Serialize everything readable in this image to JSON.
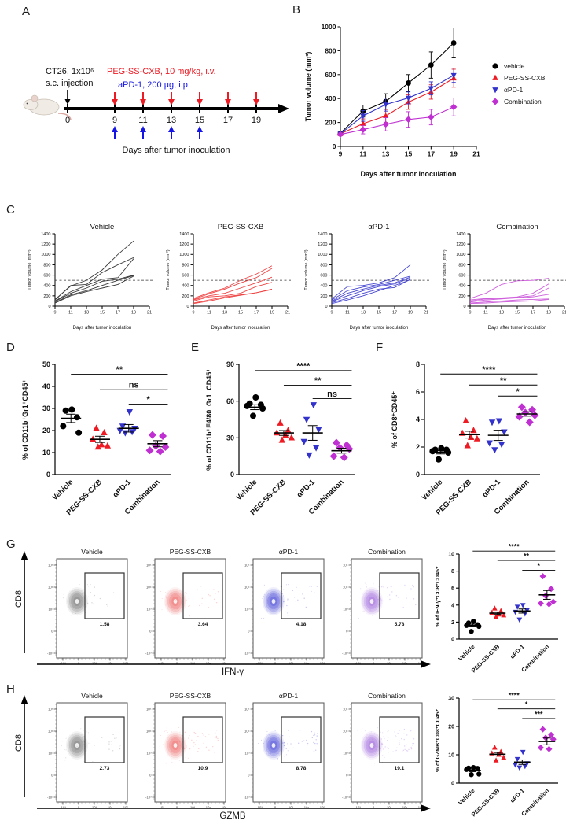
{
  "panels": {
    "a": "A",
    "b": "B",
    "c": "C",
    "d": "D",
    "e": "E",
    "f": "F",
    "g": "G",
    "h": "H"
  },
  "panel_a": {
    "injection_line1": "CT26, 1x10⁶",
    "injection_line2": "s.c. injection",
    "red_text": "PEG-SS-CXB, 10 mg/kg, i.v.",
    "blue_text": "aPD-1, 200 µg, i.p.",
    "timeline_days": [
      0,
      9,
      11,
      13,
      15,
      17,
      19
    ],
    "red_arrow_days": [
      9,
      11,
      13,
      15,
      17,
      19
    ],
    "blue_arrow_days": [
      9,
      11,
      13,
      15
    ],
    "xlabel": "Days after tumor inoculation",
    "red": "#ED1C24",
    "blue": "#1414E6"
  },
  "chart_data": [
    {
      "id": "B",
      "kind": "line",
      "type": "line",
      "xlabel": "Days after tumor inoculation",
      "ylabel": "Tumor volume (mm³)",
      "xlim": [
        9,
        21
      ],
      "ylim": [
        0,
        1000
      ],
      "xticks": [
        9,
        11,
        13,
        15,
        17,
        19,
        21
      ],
      "yticks": [
        0,
        200,
        400,
        600,
        800,
        1000
      ],
      "x": [
        9,
        11,
        13,
        15,
        17,
        19
      ],
      "legend_position": "right",
      "series": [
        {
          "name": "vehicle",
          "color": "#000000",
          "marker": "circle",
          "values": [
            110,
            295,
            375,
            530,
            680,
            865
          ],
          "err": [
            15,
            50,
            65,
            70,
            110,
            125
          ]
        },
        {
          "name": "PEG-SS-CXB",
          "color": "#ED1C24",
          "marker": "triangle",
          "values": [
            105,
            190,
            255,
            370,
            455,
            570
          ],
          "err": [
            12,
            40,
            55,
            60,
            60,
            75
          ]
        },
        {
          "name": "αPD-1",
          "color": "#3333CC",
          "marker": "triangle-down",
          "values": [
            105,
            255,
            350,
            405,
            485,
            595
          ],
          "err": [
            12,
            45,
            55,
            50,
            55,
            60
          ]
        },
        {
          "name": "Combination",
          "color": "#BF2FD1",
          "marker": "diamond",
          "values": [
            100,
            140,
            185,
            225,
            245,
            330
          ],
          "err": [
            12,
            35,
            55,
            65,
            65,
            75
          ]
        }
      ]
    },
    {
      "id": "C1",
      "kind": "spider",
      "type": "line",
      "title": "Vehicle",
      "color": "#3a3a3a",
      "xlabel": "Days after tumor inoculation",
      "ylabel": "Tumor volume (mm³)",
      "xlim": [
        9,
        21
      ],
      "ylim": [
        0,
        1400
      ],
      "xticks": [
        9,
        11,
        13,
        15,
        17,
        19,
        21
      ],
      "yticks": [
        0,
        200,
        400,
        600,
        800,
        1000,
        1200,
        1400
      ],
      "threshold": 500,
      "x": [
        9,
        11,
        13,
        15,
        17,
        19
      ],
      "lines": [
        [
          130,
          390,
          500,
          700,
          1000,
          1260
        ],
        [
          120,
          400,
          420,
          650,
          800,
          940
        ],
        [
          100,
          280,
          400,
          520,
          550,
          920
        ],
        [
          90,
          250,
          350,
          480,
          520,
          600
        ],
        [
          70,
          220,
          300,
          400,
          500,
          590
        ],
        [
          60,
          200,
          280,
          350,
          420,
          580
        ]
      ]
    },
    {
      "id": "C2",
      "kind": "spider",
      "type": "line",
      "title": "PEG-SS-CXB",
      "color": "#EF4444",
      "xlabel": "Days after tumor inoculation",
      "ylabel": "Tumor volume (mm³)",
      "xlim": [
        9,
        21
      ],
      "ylim": [
        0,
        1400
      ],
      "xticks": [
        9,
        11,
        13,
        15,
        17,
        19,
        21
      ],
      "yticks": [
        0,
        200,
        400,
        600,
        800,
        1000,
        1200,
        1400
      ],
      "threshold": 500,
      "x": [
        9,
        11,
        13,
        15,
        17,
        19
      ],
      "lines": [
        [
          150,
          260,
          350,
          500,
          620,
          780
        ],
        [
          130,
          240,
          330,
          450,
          550,
          730
        ],
        [
          120,
          200,
          250,
          350,
          450,
          560
        ],
        [
          100,
          180,
          200,
          250,
          380,
          460
        ],
        [
          60,
          120,
          180,
          220,
          260,
          330
        ],
        [
          50,
          100,
          160,
          210,
          260,
          320
        ]
      ]
    },
    {
      "id": "C3",
      "kind": "spider",
      "type": "line",
      "title": "αPD-1",
      "color": "#4646D2",
      "xlabel": "Days after tumor inoculation",
      "ylabel": "Tumor volume (mm³)",
      "xlim": [
        9,
        21
      ],
      "ylim": [
        0,
        1400
      ],
      "xticks": [
        9,
        11,
        13,
        15,
        17,
        19,
        21
      ],
      "yticks": [
        0,
        200,
        400,
        600,
        800,
        1000,
        1200,
        1400
      ],
      "threshold": 500,
      "x": [
        9,
        11,
        13,
        15,
        17,
        19
      ],
      "lines": [
        [
          140,
          380,
          400,
          450,
          550,
          800
        ],
        [
          120,
          300,
          370,
          420,
          500,
          580
        ],
        [
          100,
          250,
          330,
          400,
          450,
          560
        ],
        [
          90,
          200,
          300,
          380,
          430,
          540
        ],
        [
          70,
          150,
          250,
          330,
          360,
          520
        ],
        [
          50,
          120,
          200,
          300,
          400,
          510
        ]
      ]
    },
    {
      "id": "C4",
      "kind": "spider",
      "type": "line",
      "title": "Combination",
      "color": "#CE5FDC",
      "xlabel": "Days after tumor inoculation",
      "ylabel": "Tumor volume (mm³)",
      "xlim": [
        9,
        21
      ],
      "ylim": [
        0,
        1400
      ],
      "xticks": [
        9,
        11,
        13,
        15,
        17,
        19,
        21
      ],
      "yticks": [
        0,
        200,
        400,
        600,
        800,
        1000,
        1200,
        1400
      ],
      "threshold": 500,
      "x": [
        9,
        11,
        13,
        15,
        17,
        19
      ],
      "lines": [
        [
          150,
          250,
          420,
          490,
          500,
          540
        ],
        [
          120,
          150,
          160,
          180,
          250,
          430
        ],
        [
          100,
          140,
          150,
          170,
          200,
          350
        ],
        [
          80,
          120,
          140,
          160,
          180,
          230
        ],
        [
          60,
          80,
          100,
          120,
          130,
          140
        ],
        [
          50,
          60,
          80,
          90,
          100,
          130
        ]
      ]
    },
    {
      "id": "D",
      "kind": "dots",
      "type": "scatter",
      "size": "big",
      "ylabel": "% of CD11b⁺Gr1⁺CD45⁺",
      "ylim": [
        0,
        50
      ],
      "yticks": [
        0,
        10,
        20,
        30,
        40,
        50
      ],
      "groups": [
        {
          "label": "Vehicle",
          "color": "#000000",
          "marker": "circle",
          "values": [
            29.5,
            29,
            26,
            22,
            19
          ],
          "mean": 25.5,
          "sem": 1.9
        },
        {
          "label": "PEG-SS-CXB",
          "color": "#ED1C24",
          "marker": "triangle",
          "values": [
            21,
            19,
            16,
            13.5,
            13,
            12.5
          ],
          "mean": 16,
          "sem": 1.4
        },
        {
          "label": "αPD-1",
          "color": "#3333CC",
          "marker": "triangle-down",
          "values": [
            28.5,
            22,
            21,
            20,
            19.5,
            19
          ],
          "mean": 21,
          "sem": 1.7
        },
        {
          "label": "Combination",
          "color": "#BF2FD1",
          "marker": "diamond",
          "values": [
            18,
            17.5,
            13,
            12.5,
            11,
            10.5
          ],
          "mean": 14,
          "sem": 1.4
        }
      ],
      "brackets": [
        {
          "from": 0,
          "to": 3,
          "label": "**",
          "y": 45.5
        },
        {
          "from": 1,
          "to": 3,
          "label": "ns",
          "y": 38.5
        },
        {
          "from": 2,
          "to": 3,
          "label": "*",
          "y": 32
        }
      ]
    },
    {
      "id": "E",
      "kind": "dots",
      "type": "scatter",
      "size": "big",
      "ylabel": "% of CD11b⁺F4/80⁺Gr1⁻CD45⁺",
      "ylim": [
        0,
        90
      ],
      "yticks": [
        0,
        30,
        60,
        90
      ],
      "groups": [
        {
          "label": "Vehicle",
          "color": "#000000",
          "marker": "circle",
          "values": [
            63,
            58,
            57,
            56,
            54,
            48
          ],
          "mean": 55,
          "sem": 2
        },
        {
          "label": "PEG-SS-CXB",
          "color": "#ED1C24",
          "marker": "triangle",
          "values": [
            42,
            36,
            34,
            32,
            30,
            28
          ],
          "mean": 34,
          "sem": 2
        },
        {
          "label": "αPD-1",
          "color": "#3333CC",
          "marker": "triangle-down",
          "values": [
            57,
            45,
            37,
            27,
            22,
            16
          ],
          "mean": 34,
          "sem": 6
        },
        {
          "label": "Combination",
          "color": "#BF2FD1",
          "marker": "diamond",
          "values": [
            26,
            24,
            22,
            21,
            15,
            14
          ],
          "mean": 19.5,
          "sem": 2
        }
      ],
      "brackets": [
        {
          "from": 0,
          "to": 3,
          "label": "****",
          "y": 85
        },
        {
          "from": 1,
          "to": 3,
          "label": "**",
          "y": 73
        },
        {
          "from": 2,
          "to": 3,
          "label": "ns",
          "y": 62
        }
      ]
    },
    {
      "id": "F",
      "kind": "dots",
      "type": "scatter",
      "size": "big",
      "ylabel": "% of CD8⁺CD45⁺",
      "ylim": [
        0,
        8
      ],
      "yticks": [
        0,
        2,
        4,
        6,
        8
      ],
      "groups": [
        {
          "label": "Vehicle",
          "color": "#000000",
          "marker": "circle",
          "values": [
            1.9,
            1.8,
            1.8,
            1.7,
            1.6,
            1.1
          ],
          "mean": 1.62,
          "sem": 0.12
        },
        {
          "label": "PEG-SS-CXB",
          "color": "#ED1C24",
          "marker": "triangle",
          "values": [
            3.9,
            3.2,
            3.0,
            2.7,
            2.6,
            2.1
          ],
          "mean": 2.9,
          "sem": 0.25
        },
        {
          "label": "αPD-1",
          "color": "#3333CC",
          "marker": "triangle-down",
          "values": [
            3.9,
            3.8,
            3.1,
            2.3,
            2.2,
            1.8
          ],
          "mean": 2.85,
          "sem": 0.37
        },
        {
          "label": "Combination",
          "color": "#BF2FD1",
          "marker": "diamond",
          "values": [
            4.9,
            4.7,
            4.5,
            4.3,
            4.2,
            3.8
          ],
          "mean": 4.4,
          "sem": 0.16
        }
      ],
      "brackets": [
        {
          "from": 0,
          "to": 3,
          "label": "****",
          "y": 7.3
        },
        {
          "from": 1,
          "to": 3,
          "label": "**",
          "y": 6.5
        },
        {
          "from": 2,
          "to": 3,
          "label": "*",
          "y": 5.7
        }
      ]
    },
    {
      "id": "G2",
      "kind": "dots",
      "type": "scatter",
      "size": "small",
      "ylabel": "% of IFN-γ⁺CD8⁺CD45⁺",
      "ylim": [
        0,
        10
      ],
      "yticks": [
        0,
        2,
        4,
        6,
        8,
        10
      ],
      "groups": [
        {
          "label": "Vehicle",
          "color": "#000000",
          "marker": "circle",
          "values": [
            2.1,
            1.9,
            1.7,
            1.6,
            1.5,
            0.9
          ],
          "mean": 1.6,
          "sem": 0.16
        },
        {
          "label": "PEG-SS-CXB",
          "color": "#ED1C24",
          "marker": "triangle",
          "values": [
            3.6,
            3.3,
            3.1,
            2.9,
            2.8,
            2.6
          ],
          "mean": 3.05,
          "sem": 0.15
        },
        {
          "label": "αPD-1",
          "color": "#3333CC",
          "marker": "triangle-down",
          "values": [
            4.0,
            3.8,
            3.4,
            3.2,
            3.0,
            2.3
          ],
          "mean": 3.3,
          "sem": 0.24
        },
        {
          "label": "Combination",
          "color": "#BF2FD1",
          "marker": "diamond",
          "values": [
            7.4,
            5.9,
            5.1,
            4.4,
            4.2,
            4.1
          ],
          "mean": 5.2,
          "sem": 0.52
        }
      ],
      "brackets": [
        {
          "from": 0,
          "to": 3,
          "label": "****",
          "y": 10.35
        },
        {
          "from": 1,
          "to": 3,
          "label": "**",
          "y": 9.25
        },
        {
          "from": 2,
          "to": 3,
          "label": "*",
          "y": 8.1
        }
      ]
    },
    {
      "id": "H2",
      "kind": "dots",
      "type": "scatter",
      "size": "small",
      "ylabel": "% of GZMB⁺CD8⁺CD45⁺",
      "ylim": [
        0,
        30
      ],
      "yticks": [
        0,
        10,
        20,
        30
      ],
      "groups": [
        {
          "label": "Vehicle",
          "color": "#000000",
          "marker": "circle",
          "values": [
            5.5,
            5.3,
            5.2,
            4.8,
            3.2,
            3.0
          ],
          "mean": 4.5,
          "sem": 0.45
        },
        {
          "label": "PEG-SS-CXB",
          "color": "#ED1C24",
          "marker": "triangle",
          "values": [
            12.5,
            11,
            10.5,
            10,
            9,
            8
          ],
          "mean": 10.2,
          "sem": 0.6
        },
        {
          "label": "αPD-1",
          "color": "#3333CC",
          "marker": "triangle-down",
          "values": [
            11,
            8.5,
            7,
            6.5,
            6,
            5.5
          ],
          "mean": 7.4,
          "sem": 0.8
        },
        {
          "label": "Combination",
          "color": "#BF2FD1",
          "marker": "diamond",
          "values": [
            19,
            17,
            16,
            15.5,
            12.5,
            12
          ],
          "mean": 14.7,
          "sem": 1.2
        }
      ],
      "brackets": [
        {
          "from": 0,
          "to": 3,
          "label": "****",
          "y": 29.4
        },
        {
          "from": 1,
          "to": 3,
          "label": "*",
          "y": 26.2
        },
        {
          "from": 2,
          "to": 3,
          "label": "***",
          "y": 22.8
        }
      ]
    }
  ],
  "panel_g": {
    "y_axis": "CD8",
    "x_axis": "IFN-γ",
    "x_ticklabels": [
      "-10³",
      "0",
      "10³",
      "10⁴",
      "10⁵"
    ],
    "y_ticklabels": [
      "10⁵",
      "10⁴",
      "10³",
      "0",
      "-10³"
    ],
    "plots": [
      {
        "title": "Vehicle",
        "gate_value": "1.58",
        "color": "#8a8a8a"
      },
      {
        "title": "PEG-SS-CXB",
        "gate_value": "3.64",
        "color": "#F07F7F"
      },
      {
        "title": "αPD-1",
        "gate_value": "4.18",
        "color": "#6464DC"
      },
      {
        "title": "Combination",
        "gate_value": "5.78",
        "color": "#AE7FE2"
      }
    ]
  },
  "panel_h": {
    "y_axis": "CD8",
    "x_axis": "GZMB",
    "x_ticklabels": [
      "-10³",
      "0",
      "10³",
      "10⁴",
      "10⁵"
    ],
    "y_ticklabels": [
      "10⁵",
      "10⁴",
      "10³",
      "0",
      "-10³"
    ],
    "plots": [
      {
        "title": "Vehicle",
        "gate_value": "2.73",
        "color": "#8a8a8a"
      },
      {
        "title": "PEG-SS-CXB",
        "gate_value": "10.9",
        "color": "#F07F7F"
      },
      {
        "title": "αPD-1",
        "gate_value": "8.78",
        "color": "#6464DC"
      },
      {
        "title": "Combination",
        "gate_value": "19.1",
        "color": "#AE7FE2"
      }
    ]
  }
}
